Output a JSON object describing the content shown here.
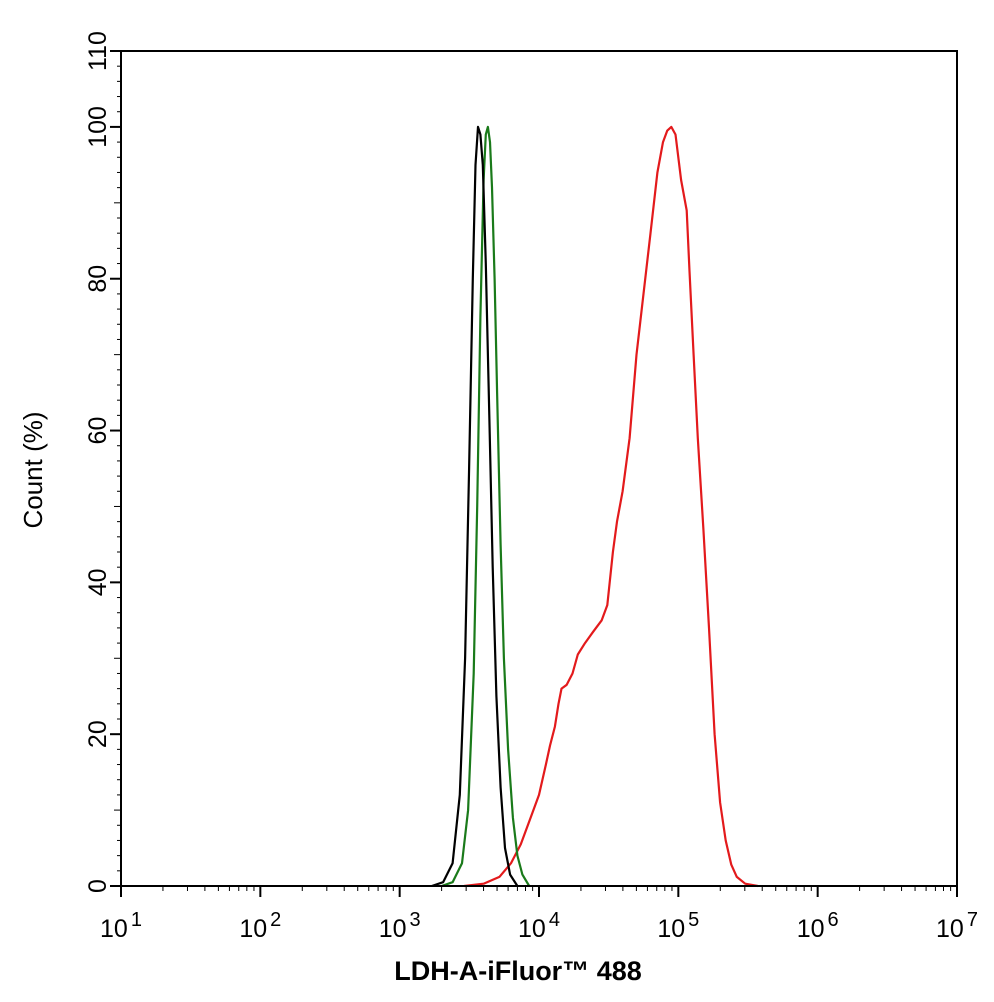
{
  "chart_data": {
    "type": "line",
    "title": "",
    "xlabel": "LDH-A-iFluor™ 488",
    "ylabel": "Count  (%)",
    "x_scale": "log",
    "xlim": [
      10,
      10000000
    ],
    "ylim": [
      0,
      110
    ],
    "x_ticks": [
      {
        "base": "10",
        "exp": "1",
        "value": 10
      },
      {
        "base": "10",
        "exp": "2",
        "value": 100
      },
      {
        "base": "10",
        "exp": "3",
        "value": 1000
      },
      {
        "base": "10",
        "exp": "4",
        "value": 10000
      },
      {
        "base": "10",
        "exp": "5",
        "value": 100000
      },
      {
        "base": "10",
        "exp": "6",
        "value": 1000000
      },
      {
        "base": "10",
        "exp": "7",
        "value": 10000000
      }
    ],
    "y_ticks": [
      {
        "label": "0",
        "value": 0
      },
      {
        "label": "20",
        "value": 20
      },
      {
        "label": "40",
        "value": 40
      },
      {
        "label": "60",
        "value": 60
      },
      {
        "label": "80",
        "value": 80
      },
      {
        "label": "100",
        "value": 100
      },
      {
        "label": "110",
        "value": 110
      }
    ],
    "grid": false,
    "legend": "none",
    "series": [
      {
        "color": "#e31a1c",
        "points": [
          [
            2900,
            0
          ],
          [
            4000,
            0.3
          ],
          [
            5200,
            1.2
          ],
          [
            6300,
            3
          ],
          [
            7400,
            5.5
          ],
          [
            8700,
            9
          ],
          [
            10000,
            12
          ],
          [
            11200,
            16
          ],
          [
            12000,
            18.5
          ],
          [
            13000,
            21
          ],
          [
            13800,
            24
          ],
          [
            14500,
            26
          ],
          [
            15800,
            26.5
          ],
          [
            17400,
            28
          ],
          [
            19000,
            30.5
          ],
          [
            21400,
            32
          ],
          [
            24500,
            33.5
          ],
          [
            28200,
            35
          ],
          [
            30900,
            37
          ],
          [
            33900,
            44
          ],
          [
            36300,
            48
          ],
          [
            39800,
            52
          ],
          [
            44700,
            59
          ],
          [
            50100,
            70
          ],
          [
            56200,
            78
          ],
          [
            63100,
            86
          ],
          [
            70800,
            94
          ],
          [
            77600,
            98
          ],
          [
            83200,
            99.5
          ],
          [
            89100,
            100
          ],
          [
            95500,
            99
          ],
          [
            104700,
            93
          ],
          [
            114800,
            89
          ],
          [
            120200,
            81
          ],
          [
            128800,
            70
          ],
          [
            138000,
            59
          ],
          [
            151400,
            47
          ],
          [
            166000,
            34
          ],
          [
            182000,
            20
          ],
          [
            199500,
            11
          ],
          [
            218800,
            6
          ],
          [
            239900,
            2.8
          ],
          [
            263000,
            1.2
          ],
          [
            302000,
            0.3
          ],
          [
            372000,
            0
          ]
        ]
      },
      {
        "color": "#1a7a1a",
        "points": [
          [
            2000,
            0
          ],
          [
            2400,
            0.5
          ],
          [
            2800,
            3
          ],
          [
            3100,
            10
          ],
          [
            3400,
            28
          ],
          [
            3600,
            50
          ],
          [
            3800,
            75
          ],
          [
            4000,
            93
          ],
          [
            4150,
            99
          ],
          [
            4300,
            100
          ],
          [
            4450,
            98
          ],
          [
            4600,
            92
          ],
          [
            4800,
            80
          ],
          [
            5000,
            65
          ],
          [
            5300,
            45
          ],
          [
            5600,
            30
          ],
          [
            6000,
            18
          ],
          [
            6500,
            9
          ],
          [
            7000,
            4
          ],
          [
            7600,
            1.5
          ],
          [
            8500,
            0
          ]
        ]
      },
      {
        "color": "#000000",
        "points": [
          [
            1700,
            0
          ],
          [
            2050,
            0.5
          ],
          [
            2400,
            3
          ],
          [
            2700,
            12
          ],
          [
            2950,
            30
          ],
          [
            3150,
            55
          ],
          [
            3350,
            80
          ],
          [
            3500,
            95
          ],
          [
            3650,
            100
          ],
          [
            3800,
            99
          ],
          [
            3950,
            95
          ],
          [
            4150,
            82
          ],
          [
            4400,
            62
          ],
          [
            4650,
            42
          ],
          [
            4950,
            25
          ],
          [
            5300,
            13
          ],
          [
            5700,
            5
          ],
          [
            6200,
            1.5
          ],
          [
            7000,
            0
          ]
        ]
      }
    ]
  }
}
